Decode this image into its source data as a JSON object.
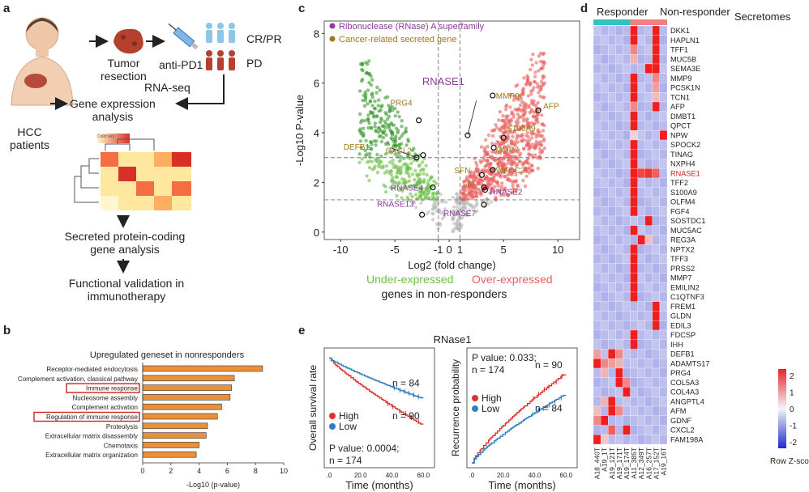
{
  "panels": {
    "a": "a",
    "b": "b",
    "c": "c",
    "d": "d",
    "e": "e"
  },
  "panel_a": {
    "patients": "HCC\npatients",
    "tumor": "Tumor\nresection",
    "anti_pd1": "anti-PD1",
    "crpr": "CR/PR",
    "pd": "PD",
    "rnaseq": "RNA-seq",
    "gene_expr": "Gene expression\nanalysis",
    "secreted": "Secreted protein-coding\ngene analysis",
    "functional": "Functional validation in\nimmunotherapy",
    "mini_key": "Color key"
  },
  "colors": {
    "green": "#6cbf4a",
    "green_dark": "#3a9a2e",
    "red": "#e8605f",
    "gray": "#b9b9b9",
    "purple": "#8e3a9e",
    "gold": "#a07a1a",
    "bar": "#e8913a",
    "teal": "#2ec4c4",
    "salmon": "#ef8080",
    "high": "#e0302e",
    "low": "#2f7fc1",
    "rnase1_label": "#d42020"
  },
  "chart_data": [
    {
      "id": "b",
      "type": "bar",
      "orientation": "horizontal",
      "title": "Upregulated geneset in nonresponders",
      "categories": [
        "Receptor-mediated endocytosis",
        "Complement activation, classical pathway",
        "Immune response",
        "Nucleosome assembly",
        "Complement activation",
        "Regulation of immune response",
        "Proteolysis",
        "Extracellular matrix disassembly",
        "Chemotaxis",
        "Extracellular matrix organization"
      ],
      "values": [
        8.5,
        6.5,
        6.3,
        6.2,
        5.6,
        5.3,
        4.6,
        4.5,
        4.0,
        3.8
      ],
      "highlighted": [
        "Immune response",
        "Regulation of immune response"
      ],
      "xlabel": "-Log10 (p-value)",
      "xlim": [
        0,
        10
      ],
      "xticks": [
        0,
        2,
        4,
        6,
        8,
        10
      ]
    },
    {
      "id": "c",
      "type": "scatter",
      "title": "",
      "xlabel": "Log2 (fold change)",
      "ylabel": "-Log10 P-value",
      "xlim": [
        -11.5,
        12
      ],
      "ylim": [
        -0.3,
        8.5
      ],
      "xticks": [
        -10,
        -5,
        -1,
        0,
        1,
        5,
        10
      ],
      "yticks": [
        0,
        2,
        4,
        6,
        8
      ],
      "thresholds": {
        "x": [
          -1,
          1
        ],
        "y": [
          1.3,
          3
        ]
      },
      "legend": [
        "Ribonuclease (RNase) A superfamily",
        "Cancer-related secreted gene"
      ],
      "group_labels": {
        "under": "Under-expressed",
        "over": "Over-expressed",
        "caption": "genes in non-responders"
      },
      "highlighted_points": [
        {
          "label": "RNASE1",
          "x": 1.7,
          "y": 3.9,
          "group": "rnase"
        },
        {
          "label": "RNASE2",
          "x": 3.3,
          "y": 1.7,
          "group": "rnase"
        },
        {
          "label": "RNASE4",
          "x": -1.5,
          "y": 1.8,
          "group": "rnase"
        },
        {
          "label": "RNASE7",
          "x": 3.2,
          "y": 1.1,
          "group": "rnase"
        },
        {
          "label": "RNASE13",
          "x": -2.5,
          "y": 0.7,
          "group": "rnase"
        },
        {
          "label": "MMP9",
          "x": 4.0,
          "y": 5.5,
          "group": "cancer"
        },
        {
          "label": "AFP",
          "x": 8.2,
          "y": 4.9,
          "group": "cancer"
        },
        {
          "label": "S100A9",
          "x": 5.0,
          "y": 3.8,
          "group": "cancer"
        },
        {
          "label": "MMP7",
          "x": 4.1,
          "y": 3.4,
          "group": "cancer"
        },
        {
          "label": "WFDC2",
          "x": 4.0,
          "y": 2.5,
          "group": "cancer"
        },
        {
          "label": "SFN",
          "x": 3.0,
          "y": 2.3,
          "group": "cancer"
        },
        {
          "label": "LIF",
          "x": 3.2,
          "y": 1.8,
          "group": "cancer"
        },
        {
          "label": "PRG4",
          "x": -2.8,
          "y": 4.5,
          "group": "cancer"
        },
        {
          "label": "CXCL2",
          "x": -2.4,
          "y": 3.1,
          "group": "cancer"
        },
        {
          "label": "DEFB1",
          "x": -3.0,
          "y": 3.0,
          "group": "cancer"
        }
      ]
    },
    {
      "id": "d",
      "type": "heatmap",
      "title": "Secretomes",
      "group_headers": [
        "Responder",
        "Non-responder"
      ],
      "columns": [
        "A18_440T",
        "A19_1T",
        "A19_121T",
        "A19_171T",
        "A19_174T",
        "A11_385T",
        "A12_349T",
        "A16_257T",
        "A17_152T",
        "A19_16T"
      ],
      "column_groups": [
        0,
        0,
        0,
        0,
        0,
        1,
        1,
        1,
        1,
        1
      ],
      "rows": [
        "DKK1",
        "HAPLN1",
        "TFF1",
        "MUC5B",
        "SEMA3E",
        "MMP9",
        "PCSK1N",
        "TCN1",
        "AFP",
        "DMBT1",
        "QPCT",
        "NPW",
        "SPOCK2",
        "TINAG",
        "NXPH4",
        "RNASE1",
        "TFF2",
        "S100A9",
        "OLFM4",
        "FGF4",
        "SOSTDC1",
        "MUC5AC",
        "REG3A",
        "NPTX2",
        "TFF3",
        "PRSS2",
        "MMP7",
        "EMILIN2",
        "C1QTNF3",
        "FREM1",
        "GLDN",
        "EDIL3",
        "FDCSP",
        "IHH",
        "DEFB1",
        "ADAMTS17",
        "PRG4",
        "COL5A3",
        "COL4A3",
        "ANGPTL4",
        "AFM",
        "GDNF",
        "CXCL2",
        "FAM198A"
      ],
      "legend_title": "Row Z-score",
      "legend_ticks": [
        "2",
        "1",
        "0",
        "-1",
        "-2"
      ],
      "zlim": [
        -2,
        2
      ]
    },
    {
      "id": "e1",
      "type": "line",
      "title": "RNase1",
      "ylabel": "Overall survival rate",
      "xlabel": "Time (months)",
      "xticks": [
        ".0",
        "20.0",
        "40.0",
        "60.0"
      ],
      "xlim": [
        0,
        65
      ],
      "ylim": [
        0,
        1.05
      ],
      "series": [
        {
          "name": "High",
          "n_label": "n = 90",
          "end_value": 0.37
        },
        {
          "name": "Low",
          "n_label": "n = 84",
          "end_value": 0.62
        }
      ],
      "p_value_text": "P value: 0.0004;",
      "n_text": "n = 174"
    },
    {
      "id": "e2",
      "type": "line",
      "title": "",
      "ylabel": "Recurrence probability",
      "xlabel": "Time (months)",
      "xticks": [
        ".0",
        "20.0",
        "40.0",
        "60.0"
      ],
      "xlim": [
        0,
        65
      ],
      "ylim": [
        0,
        0.75
      ],
      "series": [
        {
          "name": "High",
          "n_label": "n = 90",
          "end_value": 0.6
        },
        {
          "name": "Low",
          "n_label": "n = 84",
          "end_value": 0.46
        }
      ],
      "p_value_text": "P value: 0.033;",
      "n_text": "n = 174"
    }
  ]
}
